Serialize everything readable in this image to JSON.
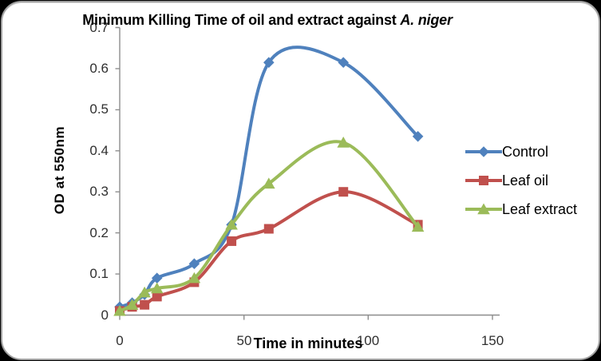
{
  "title": {
    "text_main": "Minimum Killing Time of oil and extract against ",
    "text_species": "A. niger"
  },
  "axes": {
    "y": {
      "label": "OD at 550nm",
      "tick_labels": [
        "0",
        "0.1",
        "0.2",
        "0.3",
        "0.4",
        "0.5",
        "0.6",
        "0.7"
      ]
    },
    "x": {
      "label": "Time in minutes",
      "tick_labels": [
        "0",
        "50",
        "100",
        "150"
      ]
    }
  },
  "colors": {
    "page_background": "#000000",
    "panel_background": "#ffffff",
    "panel_border": "#9f9f9f",
    "axis_line": "#8d8d8d",
    "tick_text": "#2f2f2f",
    "control_blue": "#4F81BD",
    "leaf_oil_red": "#C0504D",
    "leaf_extract_green": "#9BBB59"
  },
  "chart_data": {
    "type": "line",
    "title": "Minimum Killing Time of oil and extract against A. niger",
    "xlabel": "Time in minutes",
    "ylabel": "OD at 550nm",
    "x": [
      0,
      5,
      10,
      15,
      30,
      45,
      60,
      90,
      120
    ],
    "series": [
      {
        "name": "Control",
        "color": "#4F81BD",
        "marker": "diamond",
        "values": [
          0.02,
          0.03,
          0.05,
          0.09,
          0.125,
          0.22,
          0.615,
          0.615,
          0.435
        ]
      },
      {
        "name": "Leaf oil",
        "color": "#C0504D",
        "marker": "square",
        "values": [
          0.01,
          0.02,
          0.025,
          0.045,
          0.08,
          0.18,
          0.21,
          0.3,
          0.22
        ]
      },
      {
        "name": "Leaf extract",
        "color": "#9BBB59",
        "marker": "triangle",
        "values": [
          0.01,
          0.025,
          0.055,
          0.065,
          0.09,
          0.22,
          0.32,
          0.42,
          0.215
        ]
      }
    ],
    "xlim": [
      0,
      150
    ],
    "ylim": [
      0,
      0.7
    ],
    "grid": false,
    "smooth": true,
    "legend_position": "right"
  }
}
